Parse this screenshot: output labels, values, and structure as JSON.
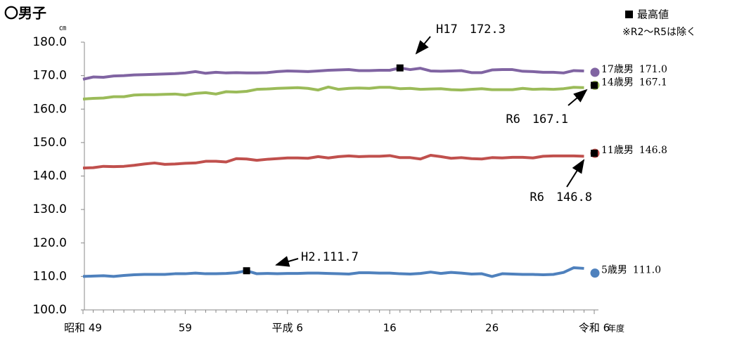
{
  "chart_data": {
    "type": "line",
    "title": "〇男子",
    "y_unit": "㎝",
    "x_label": "年度",
    "legend_label": "最高値",
    "note": "※R2～R5は除く",
    "categories": [
      "昭和 49",
      null,
      null,
      null,
      null,
      null,
      null,
      null,
      null,
      null,
      "59",
      null,
      null,
      null,
      null,
      null,
      null,
      null,
      null,
      null,
      "平成 6",
      null,
      null,
      null,
      null,
      null,
      null,
      null,
      null,
      null,
      "16",
      null,
      null,
      null,
      null,
      null,
      null,
      null,
      null,
      null,
      "26",
      null,
      null,
      null,
      null,
      null,
      null,
      null,
      null,
      null,
      "令和 6"
    ],
    "ylim": [
      100,
      180
    ],
    "yticks": [
      {
        "value": 100,
        "label": "100.0"
      },
      {
        "value": 110,
        "label": "110.0"
      },
      {
        "value": 120,
        "label": "120.0"
      },
      {
        "value": 130,
        "label": "130.0"
      },
      {
        "value": 140,
        "label": "140.0"
      },
      {
        "value": 150,
        "label": "150.0"
      },
      {
        "value": 160,
        "label": "160.0"
      },
      {
        "value": 170,
        "label": "170.0"
      },
      {
        "value": 180,
        "label": "180.0"
      }
    ],
    "grid": false,
    "series": [
      {
        "name": "17歳男",
        "color": "#8064a2",
        "values": [
          168.9,
          169.6,
          169.5,
          169.9,
          170.0,
          170.2,
          170.3,
          170.4,
          170.5,
          170.6,
          170.8,
          171.2,
          170.7,
          171.0,
          170.8,
          170.9,
          170.8,
          170.8,
          170.9,
          171.2,
          171.4,
          171.3,
          171.2,
          171.4,
          171.6,
          171.7,
          171.8,
          171.5,
          171.5,
          171.6,
          171.6,
          172.3,
          171.8,
          172.2,
          171.4,
          171.3,
          171.4,
          171.5,
          170.9,
          170.9,
          171.7,
          171.8,
          171.8,
          171.3,
          171.2,
          171.0,
          171.0,
          170.8,
          171.5,
          171.4,
          null
        ],
        "latest": {
          "value": 171.0,
          "label": "171.0"
        },
        "max": {
          "index": 31,
          "value": 172.3,
          "label": "H17　172.3"
        }
      },
      {
        "name": "14歳男",
        "color": "#9bbb59",
        "values": [
          163.0,
          163.2,
          163.3,
          163.7,
          163.7,
          164.2,
          164.3,
          164.3,
          164.4,
          164.5,
          164.2,
          164.7,
          164.9,
          164.5,
          165.2,
          165.1,
          165.3,
          165.9,
          166.0,
          166.2,
          166.3,
          166.4,
          166.2,
          165.7,
          166.6,
          165.9,
          166.2,
          166.3,
          166.2,
          166.5,
          166.5,
          166.1,
          166.2,
          165.9,
          166.0,
          166.1,
          165.8,
          165.7,
          165.9,
          166.1,
          165.8,
          165.8,
          165.8,
          166.2,
          165.9,
          166.0,
          165.9,
          166.1,
          166.5,
          166.4,
          null
        ],
        "latest": {
          "value": 167.1,
          "label": "167.1"
        },
        "max": {
          "index": 50,
          "value": 167.1,
          "label": "R6　167.1"
        }
      },
      {
        "name": "11歳男",
        "color": "#c0504d",
        "values": [
          142.4,
          142.5,
          142.9,
          142.8,
          142.9,
          143.2,
          143.6,
          143.9,
          143.5,
          143.6,
          143.8,
          143.9,
          144.4,
          144.4,
          144.2,
          145.2,
          145.1,
          144.7,
          145.0,
          145.2,
          145.4,
          145.4,
          145.3,
          145.8,
          145.4,
          145.8,
          146.0,
          145.8,
          145.9,
          145.9,
          146.1,
          145.5,
          145.5,
          145.1,
          146.2,
          145.8,
          145.3,
          145.5,
          145.2,
          145.1,
          145.5,
          145.4,
          145.6,
          145.6,
          145.4,
          145.9,
          146.0,
          146.0,
          146.0,
          145.9,
          null
        ],
        "latest": {
          "value": 146.8,
          "label": "146.8"
        },
        "max": {
          "index": 50,
          "value": 146.8,
          "label": "R6　146.8"
        }
      },
      {
        "name": "5歳男",
        "color": "#4f81bd",
        "values": [
          110.0,
          110.1,
          110.2,
          110.0,
          110.3,
          110.5,
          110.6,
          110.6,
          110.6,
          110.8,
          110.8,
          111.0,
          110.8,
          110.8,
          110.9,
          111.1,
          111.7,
          110.8,
          110.9,
          110.8,
          110.9,
          110.9,
          111.0,
          111.0,
          110.9,
          110.8,
          110.7,
          111.1,
          111.1,
          111.0,
          111.0,
          110.8,
          110.7,
          110.9,
          111.3,
          110.9,
          111.2,
          111.0,
          110.7,
          110.8,
          110.0,
          110.8,
          110.7,
          110.6,
          110.6,
          110.5,
          110.6,
          111.2,
          112.6,
          112.4,
          null
        ],
        "latest": {
          "value": 111.0,
          "label": "111.0"
        },
        "max": {
          "index": 16,
          "value": 111.7,
          "label": "H2.111.7"
        }
      }
    ]
  }
}
